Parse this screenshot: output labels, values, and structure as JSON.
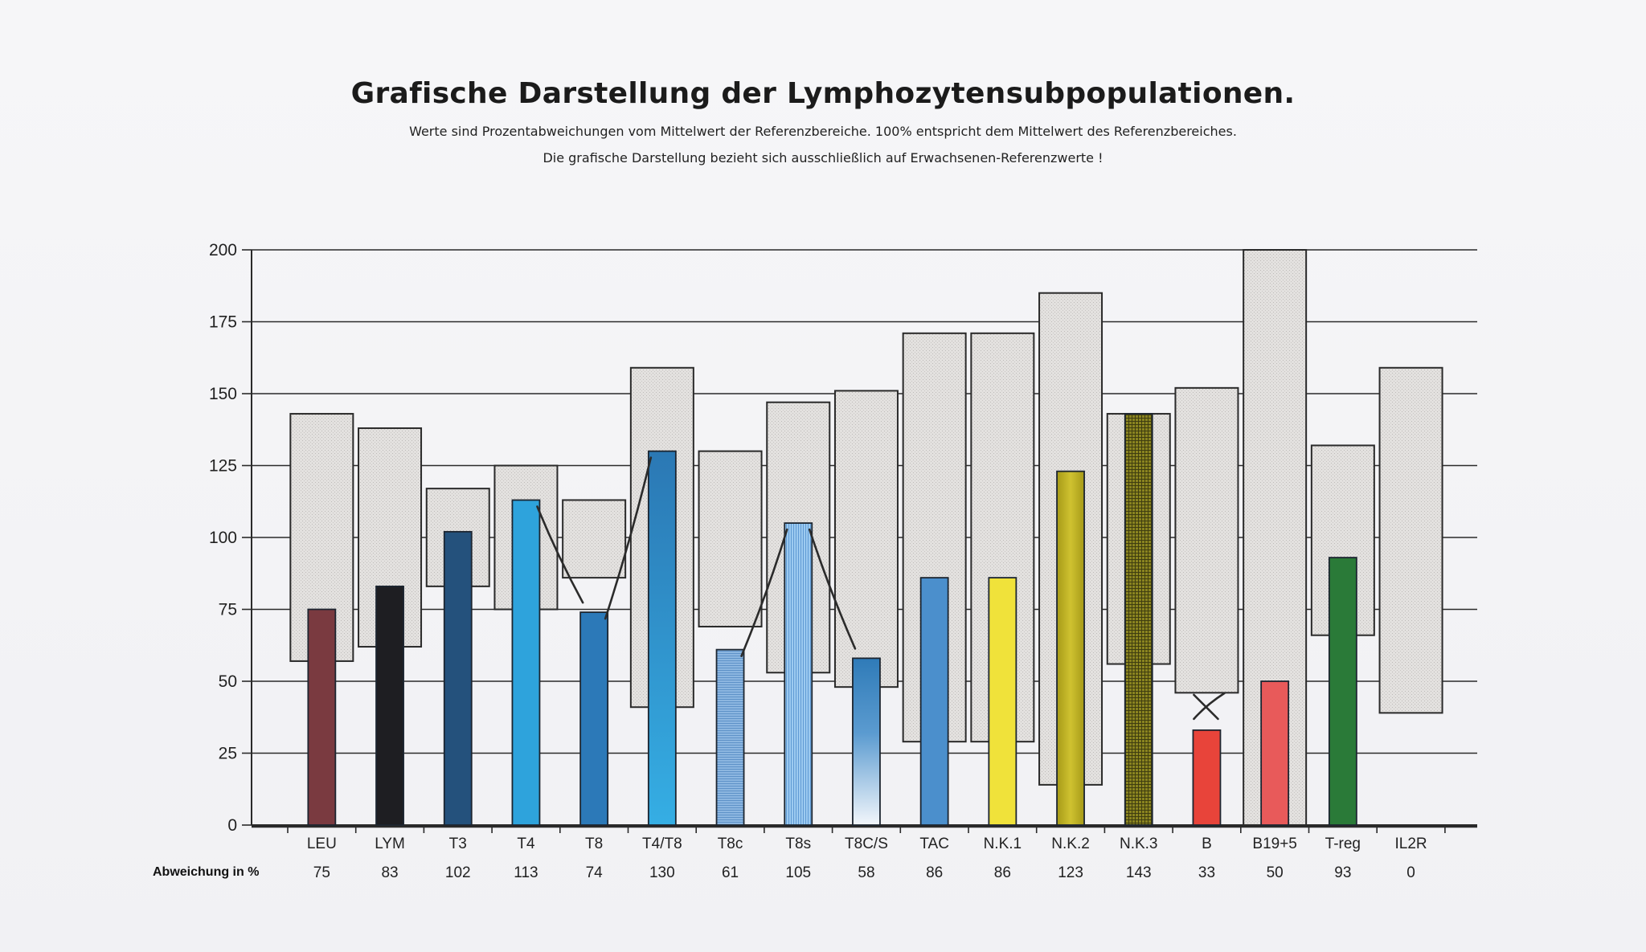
{
  "header": {
    "title": "Grafische Darstellung der Lymphozytensubpopulationen.",
    "subtitle_line1": "Werte sind Prozentabweichungen vom Mittelwert der Referenzbereiche. 100% entspricht dem Mittelwert des Referenzbereiches.",
    "subtitle_line2": "Die grafische Darstellung bezieht sich ausschließlich auf Erwachsenen-Referenzwerte !"
  },
  "chart_data": {
    "type": "bar",
    "title": "Grafische Darstellung der Lymphozytensubpopulationen.",
    "xlabel": "",
    "ylabel": "Abweichung in %",
    "ylim": [
      0,
      200
    ],
    "yticks": [
      0,
      25,
      50,
      75,
      100,
      125,
      150,
      175,
      200
    ],
    "grid": true,
    "value_row_label": "Abweichung in %",
    "categories": [
      "LEU",
      "LYM",
      "T3",
      "T4",
      "T8",
      "T4/T8",
      "T8c",
      "T8s",
      "T8C/S",
      "TAC",
      "N.K.1",
      "N.K.2",
      "N.K.3",
      "B",
      "B19+5",
      "T-reg",
      "IL2R"
    ],
    "values": [
      75,
      83,
      102,
      113,
      74,
      130,
      61,
      105,
      58,
      86,
      86,
      123,
      143,
      33,
      50,
      93,
      0
    ],
    "reference_ranges": [
      [
        57,
        143
      ],
      [
        62,
        138
      ],
      [
        83,
        117
      ],
      [
        75,
        125
      ],
      [
        86,
        113
      ],
      [
        41,
        159
      ],
      [
        69,
        130
      ],
      [
        53,
        147
      ],
      [
        48,
        151
      ],
      [
        29,
        171
      ],
      [
        29,
        171
      ],
      [
        14,
        185
      ],
      [
        56,
        143
      ],
      [
        46,
        152
      ],
      [
        0,
        200
      ],
      [
        66,
        132
      ],
      [
        39,
        159
      ]
    ],
    "bar_colors": [
      "#7a3a40",
      "#1e1e22",
      "#24517c",
      "#2ea3dc",
      "#2c79b8",
      "#2f92cf",
      "#7fb0dc",
      "#8ec0e8",
      "#3a88c4",
      "#4b8fcc",
      "#f0e23a",
      "#b9ad22",
      "#6e6a1a",
      "#e8443a",
      "#e85a5a",
      "#2a7a38",
      "#cccccc"
    ],
    "range_fill_color": "#e2e0df",
    "annotations": [
      {
        "type": "handwritten-line",
        "points": [
          "T4",
          "T8"
        ]
      },
      {
        "type": "handwritten-line",
        "points": [
          "T8",
          "T4/T8"
        ]
      },
      {
        "type": "handwritten-line",
        "points": [
          "T8c",
          "T8s"
        ]
      },
      {
        "type": "handwritten-line",
        "points": [
          "T8s",
          "T8C/S"
        ]
      },
      {
        "type": "handwritten-cross",
        "at": "B"
      }
    ]
  }
}
